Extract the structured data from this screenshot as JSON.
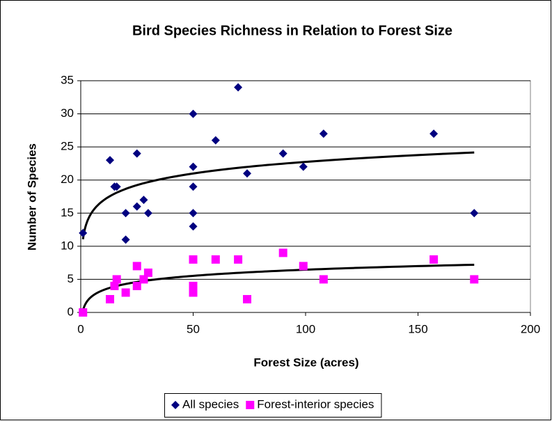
{
  "chart_data": {
    "type": "scatter",
    "title": "Bird Species Richness in Relation to Forest Size",
    "xlabel": "Forest Size (acres)",
    "ylabel": "Number of Species",
    "xlim": [
      0,
      200
    ],
    "xticks": [
      0,
      50,
      100,
      150,
      200
    ],
    "ylim": [
      0,
      35
    ],
    "yticks": [
      0,
      5,
      10,
      15,
      20,
      25,
      30,
      35
    ],
    "grid": true,
    "legend": "bottom",
    "series": [
      {
        "name": "All species",
        "color": "#000080",
        "marker": "diamond",
        "trendline": "logarithmic",
        "trendline_color": "#000000",
        "x": [
          1,
          13,
          15,
          16,
          20,
          20,
          25,
          25,
          28,
          30,
          50,
          50,
          50,
          50,
          50,
          60,
          70,
          74,
          90,
          99,
          108,
          157,
          175
        ],
        "values": [
          12,
          23,
          19,
          19,
          15,
          11,
          24,
          16,
          17,
          15,
          30,
          22,
          19,
          15,
          13,
          26,
          34,
          21,
          24,
          22,
          27,
          27,
          15
        ]
      },
      {
        "name": "Forest-interior species",
        "color": "#ff00ff",
        "marker": "square",
        "trendline": "logarithmic",
        "trendline_color": "#000000",
        "x": [
          1,
          13,
          15,
          16,
          20,
          25,
          25,
          28,
          30,
          50,
          50,
          50,
          60,
          70,
          74,
          90,
          99,
          108,
          157,
          175
        ],
        "values": [
          0,
          2,
          4,
          5,
          3,
          7,
          4,
          5,
          6,
          8,
          4,
          3,
          8,
          8,
          2,
          9,
          7,
          5,
          8,
          5
        ]
      }
    ]
  }
}
